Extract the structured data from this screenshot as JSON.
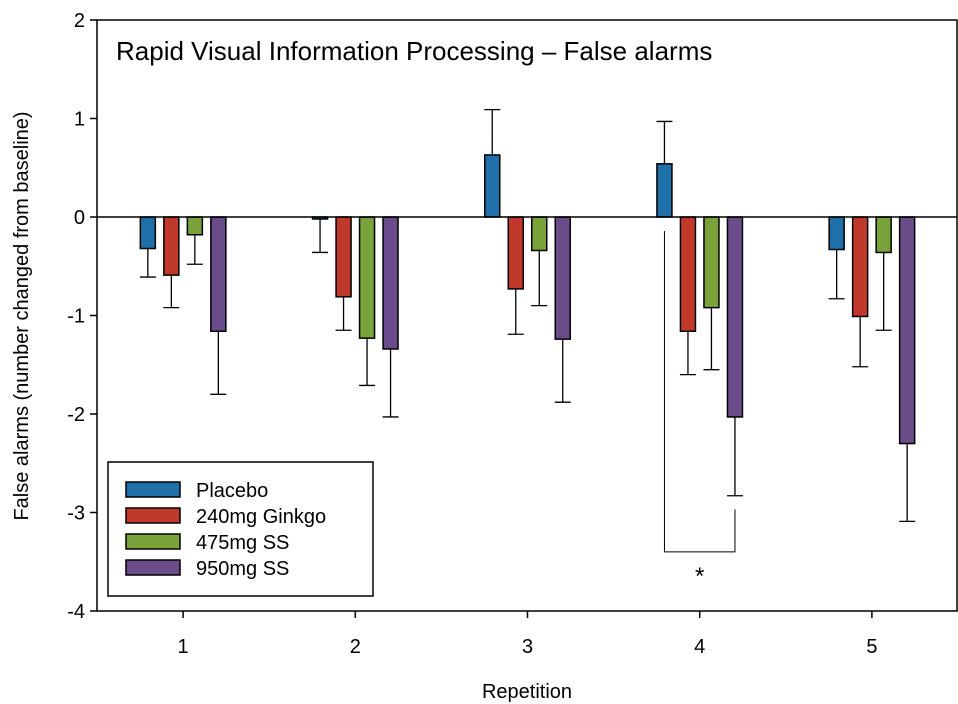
{
  "chart_data": {
    "type": "bar",
    "title": "Rapid Visual Information Processing – False alarms",
    "xlabel": "Repetition",
    "ylabel": "False alarms (number changed from baseline)",
    "ylim": [
      -4,
      2
    ],
    "yticks": [
      "2",
      "1",
      "0",
      "-1",
      "-2",
      "-3",
      "-4"
    ],
    "categories": [
      "1",
      "2",
      "3",
      "4",
      "5"
    ],
    "series": [
      {
        "name": "Placebo",
        "color": "#1f6fa8",
        "values": [
          -0.32,
          -0.02,
          0.63,
          0.54,
          -0.33
        ],
        "errors": [
          0.29,
          0.34,
          0.46,
          0.43,
          0.5
        ]
      },
      {
        "name": "240mg Ginkgo",
        "color": "#c0392b",
        "values": [
          -0.59,
          -0.81,
          -0.73,
          -1.16,
          -1.01
        ],
        "errors": [
          0.33,
          0.34,
          0.46,
          0.44,
          0.51
        ]
      },
      {
        "name": "475mg SS",
        "color": "#7aa23a",
        "values": [
          -0.18,
          -1.23,
          -0.34,
          -0.92,
          -0.36
        ],
        "errors": [
          0.3,
          0.48,
          0.56,
          0.63,
          0.79
        ]
      },
      {
        "name": "950mg SS",
        "color": "#6b4c8b",
        "values": [
          -1.16,
          -1.34,
          -1.24,
          -2.03,
          -2.3
        ],
        "errors": [
          0.64,
          0.69,
          0.64,
          0.8,
          0.79
        ]
      }
    ],
    "grid": false,
    "legend_position": "bottom-left",
    "annotations": [
      {
        "text": "*",
        "note": "significance bracket between Placebo and 950mg SS at repetition 4"
      }
    ]
  }
}
